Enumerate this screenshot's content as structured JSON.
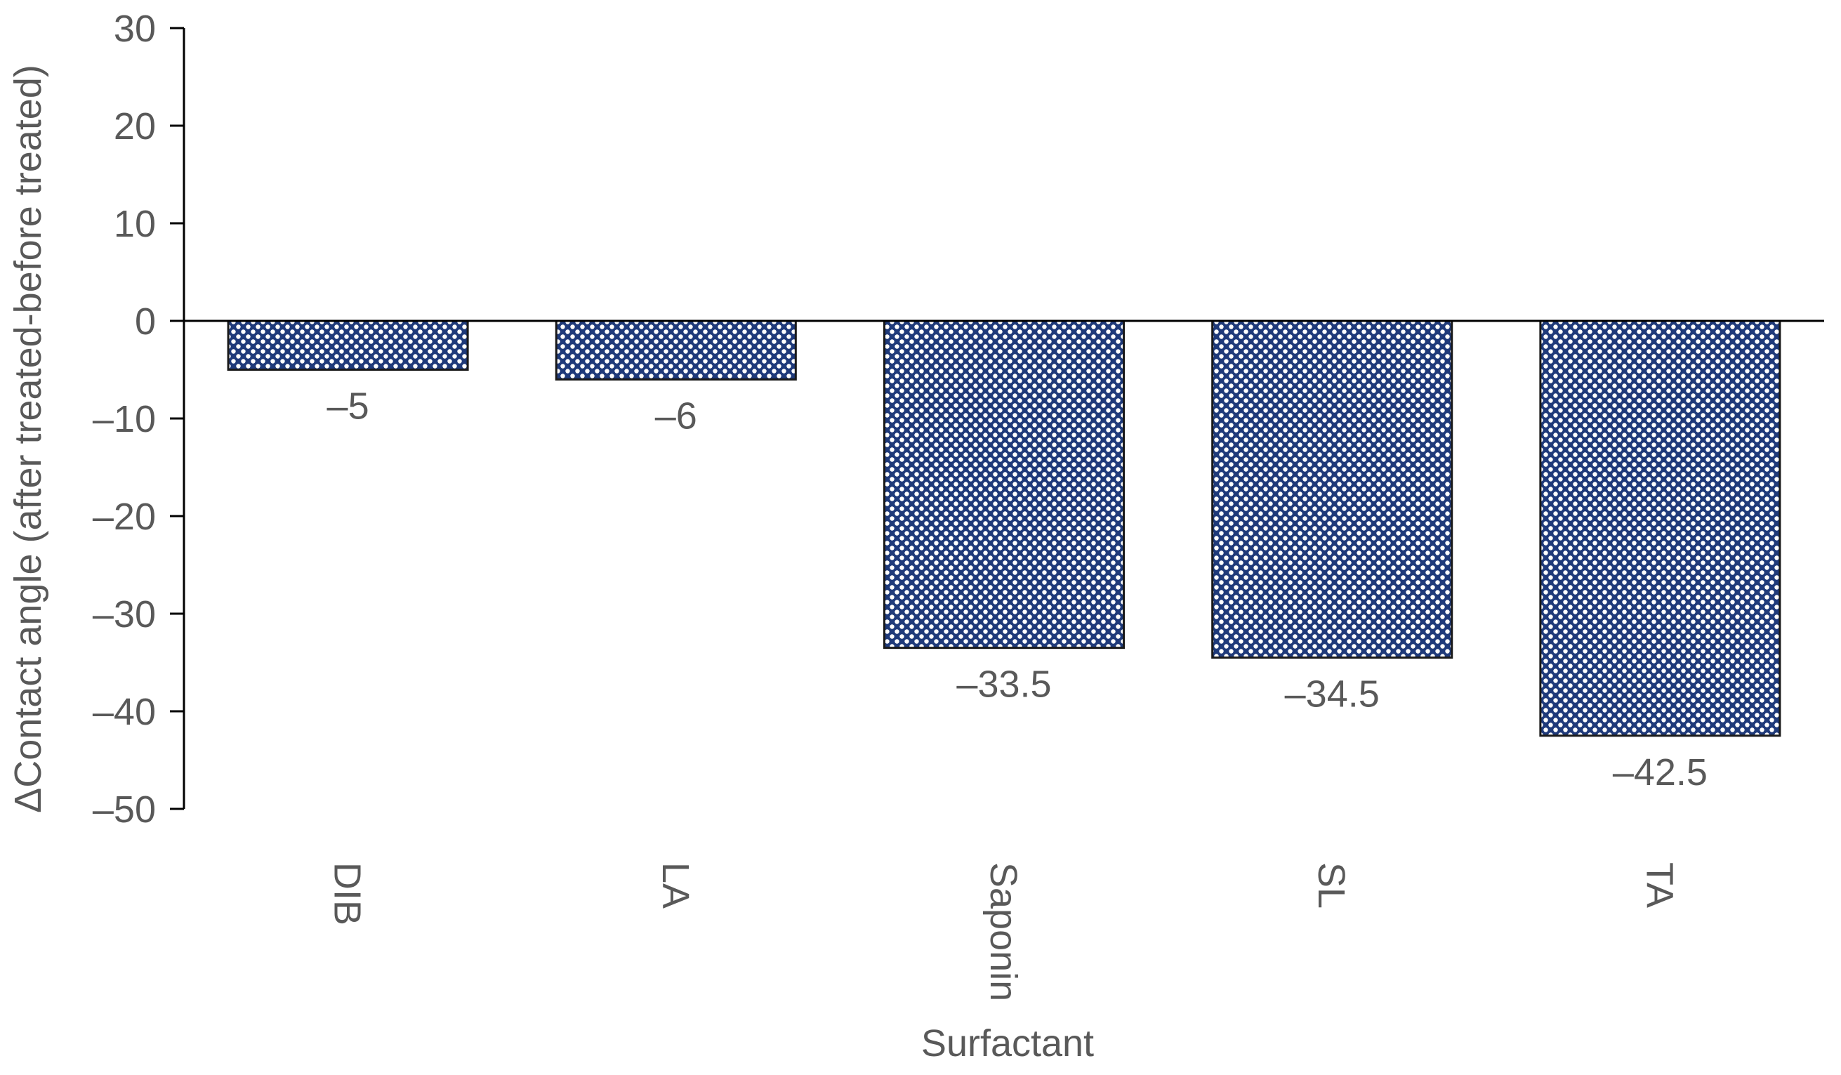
{
  "chart_data": {
    "type": "bar",
    "categories": [
      "DIB",
      "LA",
      "Saponin",
      "SL",
      "TA"
    ],
    "values": [
      -5,
      -6,
      -33.5,
      -34.5,
      -42.5
    ],
    "data_labels": [
      "–5",
      "–6",
      "–33.5",
      "–34.5",
      "–42.5"
    ],
    "xlabel": "Surfactant",
    "ylabel": "ΔContact  angle (after treated-before treated)",
    "ylim": [
      -50,
      30
    ],
    "yticks": [
      30,
      20,
      10,
      0,
      -10,
      -20,
      -30,
      -40,
      -50
    ],
    "ytick_labels": [
      "30",
      "20",
      "10",
      "0",
      "–10",
      "–20",
      "–30",
      "–40",
      "–50"
    ],
    "grid": false,
    "legend": "none",
    "bar_color": "#1f3a7a",
    "bar_pattern": "checker-dots"
  }
}
